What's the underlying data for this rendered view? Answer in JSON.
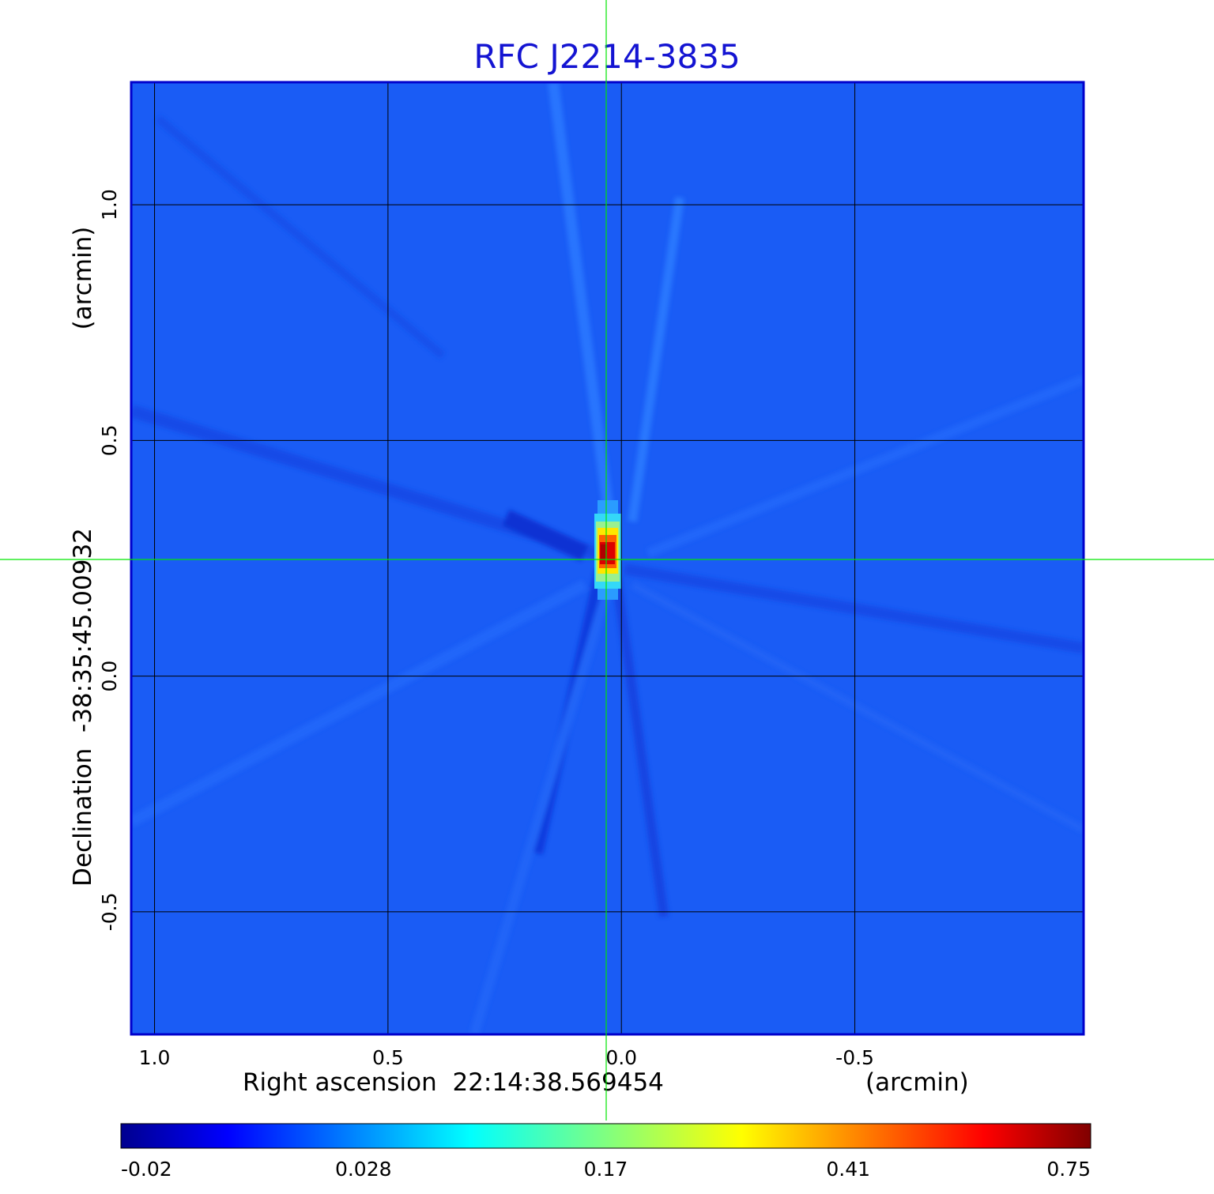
{
  "chart_data": {
    "type": "heatmap",
    "title": "RFC J2214-3835",
    "xlabel": "Right ascension  22:14:38.569454",
    "xunit": "(arcmin)",
    "ylabel": "Declination  -38:35:45.00932",
    "yunit": "(arcmin)",
    "xlim": [
      1.05,
      -0.99
    ],
    "ylim": [
      -0.76,
      1.26
    ],
    "x_ticks": [
      1.0,
      0.5,
      0.0,
      -0.5
    ],
    "x_tick_labels": [
      "1.0",
      "0.5",
      "0.0",
      "-0.5"
    ],
    "y_ticks": [
      1.0,
      0.5,
      0.0,
      -0.5
    ],
    "y_tick_labels": [
      "1.0",
      "0.5",
      "0.0",
      "-0.5"
    ],
    "grid": true,
    "crosshair": {
      "x": 0.027,
      "y": 0.25,
      "color": "#00e600"
    },
    "source_peak": {
      "x": 0.025,
      "y": 0.26,
      "value": 0.75
    },
    "colormap": "jet",
    "colorbar": {
      "orientation": "horizontal",
      "tick_labels": [
        "-0.02",
        "0.028",
        "0.17",
        "0.41",
        "0.75"
      ],
      "min": -0.02,
      "max": 0.75
    },
    "colors": {
      "background_map": "#1a5cf5",
      "frame": "#0000cc",
      "title": "#1414d2",
      "crosshair": "#00e600"
    }
  }
}
